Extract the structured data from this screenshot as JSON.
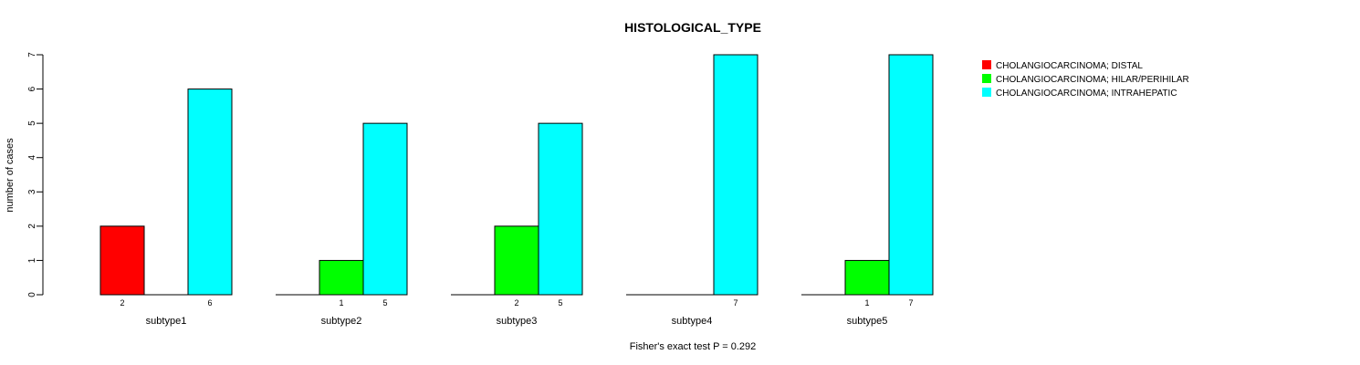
{
  "chart_data": {
    "type": "bar",
    "title": "HISTOLOGICAL_TYPE",
    "ylabel": "number of cases",
    "xlabel": "",
    "footer": "Fisher's exact test P = 0.292",
    "ylim": [
      0,
      7
    ],
    "yticks": [
      "0",
      "1",
      "2",
      "3",
      "4",
      "5",
      "6",
      "7"
    ],
    "categories": [
      "subtype1",
      "subtype2",
      "subtype3",
      "subtype4",
      "subtype5"
    ],
    "series": [
      {
        "name": "CHOLANGIOCARCINOMA; DISTAL",
        "color": "#ff0000",
        "values": [
          2,
          0,
          0,
          0,
          0
        ]
      },
      {
        "name": "CHOLANGIOCARCINOMA; HILAR/PERIHILAR",
        "color": "#00ff00",
        "values": [
          0,
          1,
          2,
          0,
          1
        ]
      },
      {
        "name": "CHOLANGIOCARCINOMA; INTRAHEPATIC",
        "color": "#00ffff",
        "values": [
          6,
          5,
          5,
          7,
          7
        ]
      }
    ],
    "count_labels": [
      [
        "2",
        "",
        "6"
      ],
      [
        "",
        "1",
        "5"
      ],
      [
        "",
        "2",
        "5"
      ],
      [
        "",
        "",
        "7"
      ],
      [
        "",
        "1",
        "7"
      ]
    ],
    "legend": "top-right",
    "grid": false
  }
}
